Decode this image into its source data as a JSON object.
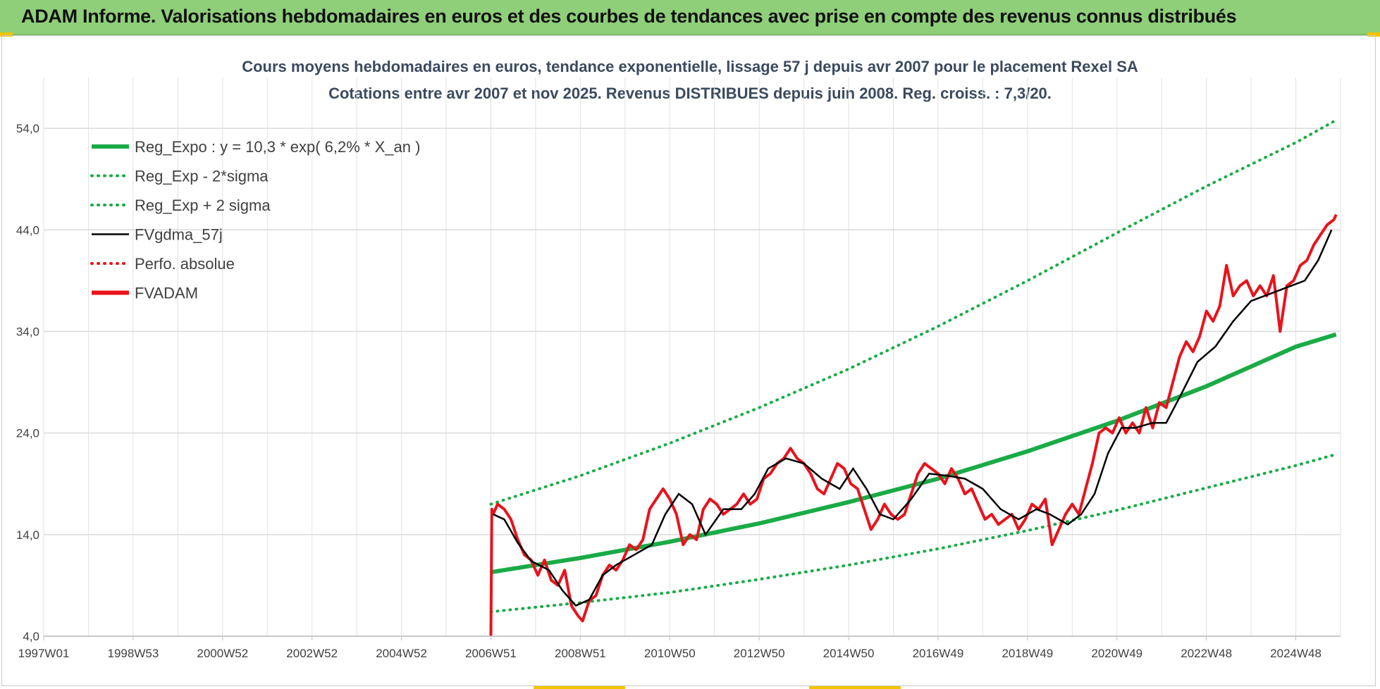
{
  "header": {
    "title": "ADAM Informe. Valorisations hebdomadaires en euros et des courbes de tendances avec prise en compte des revenus connus distribués"
  },
  "colors": {
    "header_bg": "#8fcf7a",
    "trend_green": "#1aab46",
    "sigma_green": "#1aab46",
    "ma_black": "#000000",
    "adam_red": "#e8131c",
    "accent_yellow": "#f2c400"
  },
  "chart_data": {
    "type": "line",
    "title": "Cours moyens hebdomadaires en euros, tendance exponentielle, lissage 57 j depuis avr 2007 pour le placement Rexel SA",
    "subtitle": "Cotations entre avr 2007 et nov 2025.  Revenus DISTRIBUES depuis juin 2008. Reg. croiss. : 7,3/20.",
    "xlabel": "",
    "ylabel": "",
    "x_range": [
      1997.0,
      2026.0
    ],
    "ylim": [
      4.0,
      59.0
    ],
    "y_ticks": [
      4.0,
      14.0,
      24.0,
      34.0,
      44.0,
      54.0
    ],
    "y_tick_labels": [
      "4,0",
      "14,0",
      "24,0",
      "34,0",
      "44,0",
      "54,0"
    ],
    "x_ticks": [
      1997.0,
      1999.0,
      2001.0,
      2003.0,
      2005.0,
      2007.0,
      2009.0,
      2011.0,
      2013.0,
      2015.0,
      2017.0,
      2019.0,
      2021.0,
      2023.0,
      2025.0
    ],
    "x_tick_labels": [
      "1997W01",
      "1998W53",
      "2000W52",
      "2002W52",
      "2004W52",
      "2006W51",
      "2008W51",
      "2010W50",
      "2012W50",
      "2014W50",
      "2016W49",
      "2018W49",
      "2020W49",
      "2022W48",
      "2024W48"
    ],
    "grid": true,
    "legend_position": "top-left",
    "legend": [
      {
        "name": "Reg_Expo : y = 10,3 * exp( 6,2% *  X_an )",
        "style": "solid-thick",
        "color": "#1aab46"
      },
      {
        "name": "Reg_Exp - 2*sigma",
        "style": "dotted",
        "color": "#1aab46"
      },
      {
        "name": "Reg_Exp + 2 sigma",
        "style": "dotted",
        "color": "#1aab46"
      },
      {
        "name": "FVgdma_57j",
        "style": "solid",
        "color": "#000000"
      },
      {
        "name": "Perfo. absolue",
        "style": "dotted",
        "color": "#e8131c"
      },
      {
        "name": "FVADAM",
        "style": "solid-thick",
        "color": "#e8131c"
      }
    ],
    "series": [
      {
        "name": "Reg_Expo : y = 10,3 * exp( 6,2% *  X_an )",
        "x": [
          2007.0,
          2009.0,
          2011.0,
          2013.0,
          2015.0,
          2017.0,
          2019.0,
          2021.0,
          2023.0,
          2025.0,
          2025.9
        ],
        "values": [
          10.3,
          11.7,
          13.3,
          15.1,
          17.2,
          19.5,
          22.2,
          25.2,
          28.6,
          32.5,
          33.7
        ]
      },
      {
        "name": "Reg_Exp - 2*sigma",
        "x": [
          2007.0,
          2009.0,
          2011.0,
          2013.0,
          2015.0,
          2017.0,
          2019.0,
          2021.0,
          2023.0,
          2025.0,
          2025.9
        ],
        "values": [
          6.4,
          7.3,
          8.3,
          9.6,
          11.0,
          12.6,
          14.4,
          16.4,
          18.6,
          20.8,
          21.9
        ]
      },
      {
        "name": "Reg_Exp + 2 sigma",
        "x": [
          2007.0,
          2009.0,
          2011.0,
          2013.0,
          2015.0,
          2017.0,
          2019.0,
          2021.0,
          2023.0,
          2025.0,
          2025.9
        ],
        "values": [
          17.0,
          19.8,
          23.0,
          26.5,
          30.3,
          34.5,
          39.0,
          43.7,
          48.3,
          52.6,
          54.8
        ]
      },
      {
        "name": "FVgdma_57j",
        "x": [
          2007.05,
          2007.3,
          2007.6,
          2007.9,
          2008.3,
          2008.6,
          2008.9,
          2009.2,
          2009.5,
          2009.8,
          2010.2,
          2010.6,
          2010.9,
          2011.2,
          2011.5,
          2011.8,
          2012.2,
          2012.6,
          2012.9,
          2013.2,
          2013.6,
          2014.0,
          2014.4,
          2014.8,
          2015.1,
          2015.4,
          2015.7,
          2016.0,
          2016.4,
          2016.8,
          2017.2,
          2017.6,
          2018.0,
          2018.4,
          2018.8,
          2019.2,
          2019.5,
          2019.9,
          2020.2,
          2020.5,
          2020.8,
          2021.1,
          2021.4,
          2021.8,
          2022.1,
          2022.4,
          2022.8,
          2023.2,
          2023.6,
          2024.0,
          2024.3,
          2024.6,
          2024.9,
          2025.2,
          2025.5,
          2025.8
        ],
        "values": [
          16.0,
          15.5,
          13.2,
          11.4,
          10.5,
          8.5,
          7.0,
          7.6,
          10.0,
          11.0,
          12.0,
          13.0,
          16.0,
          18.0,
          17.0,
          14.0,
          16.5,
          16.5,
          18.0,
          20.5,
          21.5,
          21.0,
          19.5,
          18.5,
          20.5,
          18.5,
          16.0,
          15.5,
          17.5,
          20.0,
          19.8,
          19.5,
          18.5,
          16.5,
          15.5,
          16.5,
          16.0,
          15.0,
          16.0,
          18.0,
          22.0,
          24.5,
          24.5,
          25.0,
          25.0,
          27.5,
          31.0,
          32.5,
          35.0,
          37.0,
          37.5,
          38.0,
          38.5,
          39.0,
          41.0,
          44.0
        ]
      },
      {
        "name": "FVADAM",
        "x": [
          2007.0,
          2007.02,
          2007.05,
          2007.15,
          2007.3,
          2007.45,
          2007.6,
          2007.75,
          2007.9,
          2008.05,
          2008.2,
          2008.35,
          2008.5,
          2008.65,
          2008.8,
          2008.95,
          2009.05,
          2009.2,
          2009.35,
          2009.5,
          2009.65,
          2009.8,
          2009.95,
          2010.1,
          2010.25,
          2010.4,
          2010.55,
          2010.7,
          2010.85,
          2011.0,
          2011.15,
          2011.3,
          2011.45,
          2011.6,
          2011.75,
          2011.9,
          2012.05,
          2012.2,
          2012.35,
          2012.5,
          2012.65,
          2012.8,
          2012.95,
          2013.1,
          2013.25,
          2013.4,
          2013.55,
          2013.7,
          2013.85,
          2014.0,
          2014.15,
          2014.3,
          2014.45,
          2014.6,
          2014.75,
          2014.9,
          2015.05,
          2015.2,
          2015.35,
          2015.5,
          2015.65,
          2015.8,
          2015.95,
          2016.1,
          2016.25,
          2016.4,
          2016.55,
          2016.7,
          2016.85,
          2017.0,
          2017.15,
          2017.3,
          2017.45,
          2017.6,
          2017.75,
          2017.9,
          2018.05,
          2018.2,
          2018.35,
          2018.5,
          2018.65,
          2018.8,
          2018.95,
          2019.1,
          2019.25,
          2019.4,
          2019.55,
          2019.7,
          2019.85,
          2020.0,
          2020.15,
          2020.3,
          2020.45,
          2020.6,
          2020.75,
          2020.9,
          2021.05,
          2021.2,
          2021.35,
          2021.5,
          2021.65,
          2021.8,
          2021.95,
          2022.1,
          2022.25,
          2022.4,
          2022.55,
          2022.7,
          2022.85,
          2023.0,
          2023.15,
          2023.3,
          2023.45,
          2023.6,
          2023.75,
          2023.9,
          2024.05,
          2024.2,
          2024.35,
          2024.5,
          2024.65,
          2024.8,
          2024.95,
          2025.1,
          2025.25,
          2025.4,
          2025.55,
          2025.7,
          2025.85,
          2025.9
        ],
        "values": [
          4.0,
          16.5,
          16.0,
          17.0,
          16.5,
          15.5,
          13.5,
          12.0,
          11.5,
          10.0,
          11.5,
          9.5,
          9.0,
          10.5,
          7.0,
          6.0,
          5.5,
          7.5,
          8.0,
          10.0,
          11.0,
          10.5,
          11.5,
          13.0,
          12.5,
          13.5,
          16.5,
          17.5,
          18.5,
          17.5,
          16.0,
          13.0,
          14.0,
          13.5,
          16.5,
          17.5,
          17.0,
          16.0,
          16.5,
          17.0,
          18.0,
          17.0,
          17.5,
          19.5,
          20.0,
          21.0,
          21.5,
          22.5,
          21.5,
          21.0,
          20.0,
          18.5,
          18.0,
          19.5,
          21.0,
          20.5,
          19.0,
          18.5,
          16.5,
          14.5,
          15.5,
          17.0,
          16.0,
          15.5,
          16.0,
          18.0,
          20.0,
          21.0,
          20.5,
          20.0,
          19.0,
          20.5,
          19.5,
          18.0,
          18.5,
          17.0,
          15.5,
          16.0,
          15.0,
          15.5,
          16.0,
          14.5,
          15.5,
          17.0,
          16.5,
          17.5,
          13.0,
          14.5,
          16.0,
          17.0,
          16.0,
          18.5,
          21.0,
          24.0,
          24.5,
          24.0,
          25.5,
          24.0,
          25.0,
          24.0,
          26.5,
          24.5,
          27.0,
          26.5,
          29.0,
          31.5,
          33.0,
          32.0,
          33.5,
          36.0,
          35.0,
          36.5,
          40.5,
          37.5,
          38.5,
          39.0,
          37.5,
          38.5,
          37.5,
          39.5,
          34.0,
          38.5,
          39.0,
          40.5,
          41.0,
          42.5,
          43.5,
          44.5,
          45.0,
          45.5
        ]
      }
    ]
  }
}
